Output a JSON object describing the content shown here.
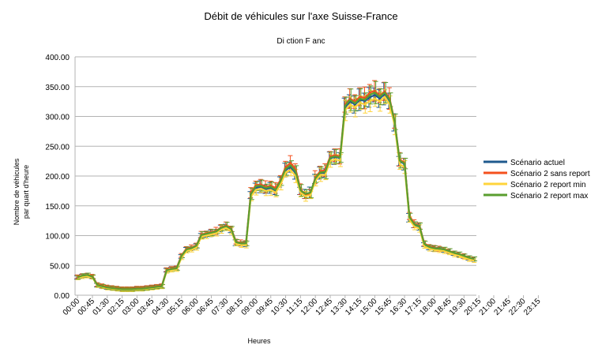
{
  "chart_data": {
    "type": "line",
    "title": "Débit de véhicules sur l'axe Suisse-France",
    "subtitle": "Di  ction F anc",
    "xlabel": "Heures",
    "ylabel_lines": [
      "Nombre de véhicules",
      "par quart d'heure"
    ],
    "ylim": [
      0,
      400
    ],
    "y_ticks": [
      "0.00",
      "50.00",
      "100.00",
      "150.00",
      "200.00",
      "250.00",
      "300.00",
      "350.00",
      "400.00"
    ],
    "x_tick_labels": [
      "00:00",
      "00:45",
      "01:30",
      "02:15",
      "03:00",
      "03:45",
      "04:30",
      "05:15",
      "06:00",
      "06:45",
      "07:30",
      "08:15",
      "09:00",
      "09:45",
      "10:30",
      "11:15",
      "12:00",
      "12:45",
      "13:30",
      "14:15",
      "15:00",
      "15:45",
      "16:30",
      "17:15",
      "18:00",
      "18:45",
      "19:30",
      "20:15",
      "21:00",
      "21:45",
      "22:30",
      "23:15"
    ],
    "grid": "horizontal",
    "legend_position": "right",
    "error_bars": true,
    "series": [
      {
        "name": "Scénario actuel",
        "color": "#1f5a8e",
        "values": [
          30,
          32,
          33,
          31,
          17,
          15,
          13,
          12,
          11,
          10,
          10,
          10,
          11,
          11,
          12,
          13,
          14,
          15,
          42,
          44,
          45,
          65,
          76,
          78,
          82,
          100,
          102,
          104,
          106,
          112,
          115,
          110,
          88,
          86,
          86,
          168,
          180,
          182,
          178,
          180,
          175,
          190,
          210,
          215,
          205,
          175,
          170,
          172,
          195,
          205,
          205,
          230,
          232,
          230,
          315,
          325,
          320,
          328,
          326,
          332,
          336,
          330,
          338,
          326,
          290,
          225,
          220,
          130,
          118,
          115,
          85,
          80,
          78,
          77,
          76,
          73,
          70,
          68,
          65,
          62,
          60
        ]
      },
      {
        "name": "Scénario 2 sans report",
        "color": "#f4511e",
        "values": [
          31,
          33,
          34,
          32,
          18,
          16,
          14,
          13,
          12,
          11,
          11,
          11,
          12,
          12,
          13,
          14,
          15,
          16,
          43,
          45,
          46,
          67,
          78,
          80,
          84,
          102,
          104,
          106,
          108,
          114,
          117,
          112,
          90,
          88,
          88,
          172,
          185,
          186,
          182,
          184,
          180,
          194,
          215,
          222,
          212,
          178,
          168,
          170,
          198,
          208,
          210,
          233,
          235,
          233,
          320,
          330,
          325,
          333,
          331,
          340,
          343,
          335,
          342,
          330,
          292,
          228,
          222,
          133,
          120,
          117,
          87,
          82,
          80,
          78,
          77,
          74,
          71,
          69,
          66,
          63,
          61
        ]
      },
      {
        "name": "Scénario 2 report min",
        "color": "#ffd43b",
        "values": [
          29,
          31,
          32,
          30,
          16,
          14,
          12,
          11,
          10,
          9,
          9,
          9,
          10,
          10,
          11,
          12,
          13,
          14,
          40,
          42,
          43,
          63,
          74,
          76,
          80,
          98,
          100,
          102,
          104,
          110,
          113,
          108,
          86,
          84,
          84,
          165,
          177,
          179,
          175,
          177,
          172,
          186,
          206,
          210,
          200,
          172,
          166,
          168,
          192,
          202,
          202,
          226,
          228,
          226,
          310,
          320,
          315,
          323,
          320,
          326,
          330,
          325,
          333,
          320,
          285,
          220,
          215,
          127,
          115,
          112,
          82,
          78,
          76,
          75,
          74,
          71,
          68,
          66,
          63,
          60,
          58
        ]
      },
      {
        "name": "Scénario 2 report max",
        "color": "#5a9e2f",
        "values": [
          30,
          33,
          34,
          31,
          17,
          15,
          13,
          12,
          11,
          10,
          10,
          10,
          11,
          11,
          12,
          13,
          14,
          15,
          42,
          44,
          45,
          66,
          77,
          79,
          83,
          101,
          103,
          105,
          107,
          113,
          116,
          111,
          89,
          87,
          87,
          170,
          183,
          184,
          180,
          182,
          177,
          192,
          212,
          218,
          208,
          176,
          170,
          172,
          196,
          206,
          207,
          231,
          233,
          231,
          318,
          328,
          322,
          330,
          328,
          336,
          340,
          333,
          340,
          328,
          291,
          226,
          221,
          131,
          119,
          116,
          86,
          81,
          79,
          78,
          77,
          74,
          71,
          69,
          66,
          63,
          61
        ]
      }
    ]
  }
}
